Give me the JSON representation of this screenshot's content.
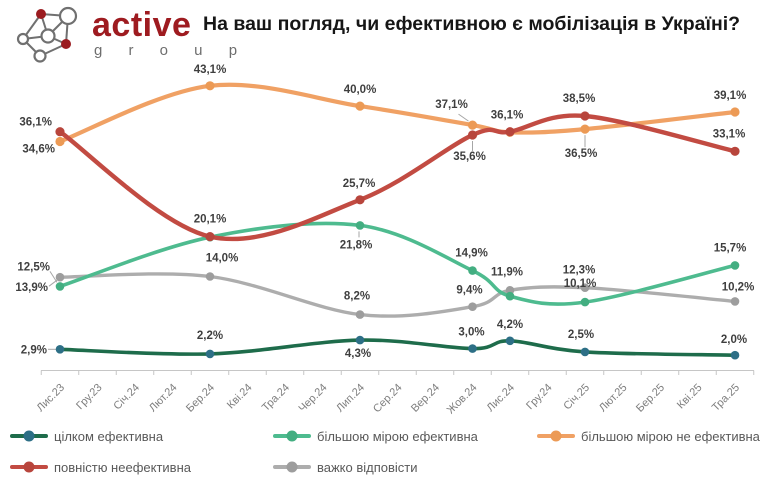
{
  "header": {
    "brand": "active",
    "brand_sub": "g r o u p",
    "title": "На ваш погляд, чи ефективною є мобілізація в Україні?"
  },
  "brand_colors": {
    "maroon": "#9E1B20",
    "gray": "#6E6E6E"
  },
  "chart_data": {
    "type": "line",
    "title": "На ваш погляд, чи ефективною є мобілізація в Україні?",
    "grid": false,
    "legend_position": "bottom",
    "ylim": [
      0,
      47
    ],
    "x_labels": [
      "Лис.23",
      "Гру.23",
      "Січ.24",
      "Лют.24",
      "Бер.24",
      "Кві.24",
      "Тра.24",
      "Чер.24",
      "Лип.24",
      "Сер.24",
      "Вер.24",
      "Жов.24",
      "Лис.24",
      "Гру.24",
      "Січ.25",
      "Лют.25",
      "Бер.25",
      "Кві.25",
      "Тра.25"
    ],
    "wave_months": [
      "Лис.23",
      "Бер.24",
      "Лип.24",
      "Жов.24",
      "Лис.24",
      "Січ.25",
      "Тра.25"
    ],
    "wave_indices": [
      0,
      4,
      8,
      11,
      12,
      14,
      18
    ],
    "series": [
      {
        "name": "важко відповісти",
        "color": "#ADADAD",
        "dot": "#9D9D9D",
        "width": 3.4,
        "r": 4.3,
        "values": [
          13.9,
          14.0,
          8.2,
          9.4,
          11.9,
          12.3,
          10.2
        ],
        "labels": [
          {
            "t": "13,9%",
            "dx": -12,
            "dy": 14,
            "a": "end",
            "lead": [
              -3,
              3,
              -11,
              9
            ]
          },
          {
            "t": "14,0%",
            "dx": 12,
            "dy": -15,
            "a": "middle"
          },
          {
            "t": "8,2%",
            "dx": -3,
            "dy": -15,
            "a": "middle"
          },
          {
            "t": "9,4%",
            "dx": -3,
            "dy": -13,
            "a": "middle"
          },
          {
            "t": "11,9%",
            "dx": -3,
            "dy": -15,
            "a": "middle"
          },
          {
            "t": "12,3%",
            "dx": -6,
            "dy": -14,
            "a": "middle"
          },
          {
            "t": "10,2%",
            "dx": 3,
            "dy": -11,
            "a": "middle"
          }
        ]
      },
      {
        "name": "більшою мірою ефективна",
        "color": "#4EBB8F",
        "dot": "#43AE81",
        "width": 3.6,
        "r": 4.3,
        "values": [
          12.5,
          20.0,
          21.8,
          14.9,
          11.0,
          10.1,
          15.7
        ],
        "labels": [
          {
            "t": "12,5%",
            "dx": -10,
            "dy": -16,
            "a": "end",
            "lead": [
              -3,
              -4,
              -10,
              -15
            ]
          },
          null,
          {
            "t": "21,8%",
            "dx": -4,
            "dy": 23,
            "a": "middle",
            "lead": [
              -1,
              6,
              -1,
              12
            ]
          },
          {
            "t": "14,9%",
            "dx": -1,
            "dy": -14,
            "a": "middle"
          },
          null,
          {
            "t": "10,1%",
            "dx": -5,
            "dy": -15,
            "a": "middle"
          },
          {
            "t": "15,7%",
            "dx": -5,
            "dy": -14,
            "a": "middle"
          }
        ]
      },
      {
        "name": "більшою мірою не ефективна",
        "color": "#F0A164",
        "dot": "#EC9A55",
        "width": 4.2,
        "r": 4.6,
        "values": [
          34.6,
          43.1,
          40.0,
          37.1,
          36.0,
          36.5,
          39.1
        ],
        "labels": [
          {
            "t": "34,6%",
            "dx": -5,
            "dy": 11,
            "a": "end"
          },
          {
            "t": "43,1%",
            "dx": 0,
            "dy": -13,
            "a": "middle"
          },
          {
            "t": "40,0%",
            "dx": 0,
            "dy": -13,
            "a": "middle"
          },
          {
            "t": "37,1%",
            "dx": -21,
            "dy": -17,
            "a": "middle",
            "lead": [
              -4,
              -4,
              -14,
              -11
            ]
          },
          null,
          {
            "t": "36,5%",
            "dx": -4,
            "dy": 28,
            "a": "middle",
            "lead": [
              0,
              6,
              0,
              18
            ]
          },
          {
            "t": "39,1%",
            "dx": -5,
            "dy": -13,
            "a": "middle"
          }
        ]
      },
      {
        "name": "повністю неефективна",
        "color": "#C24B42",
        "dot": "#B8453C",
        "width": 4.4,
        "r": 4.6,
        "values": [
          36.1,
          20.1,
          25.7,
          35.6,
          36.1,
          38.5,
          33.1
        ],
        "labels": [
          {
            "t": "36,1%",
            "dx": -8,
            "dy": -6,
            "a": "end"
          },
          {
            "t": "20,1%",
            "dx": 0,
            "dy": -14,
            "a": "middle"
          },
          {
            "t": "25,7%",
            "dx": -1,
            "dy": -13,
            "a": "middle"
          },
          {
            "t": "35,6%",
            "dx": -3,
            "dy": 25,
            "a": "middle",
            "lead": [
              0,
              6,
              0,
              16
            ]
          },
          {
            "t": "36,1%",
            "dx": -3,
            "dy": -13,
            "a": "middle"
          },
          {
            "t": "38,5%",
            "dx": -6,
            "dy": -14,
            "a": "middle"
          },
          {
            "t": "33,1%",
            "dx": -6,
            "dy": -14,
            "a": "middle"
          }
        ]
      },
      {
        "name": "цілком ефективна",
        "color": "#1E6C4B",
        "dot": "#2D6F86",
        "width": 3.6,
        "r": 4.3,
        "values": [
          2.9,
          2.2,
          4.3,
          3.0,
          4.2,
          2.5,
          2.0
        ],
        "labels": [
          {
            "t": "2,9%",
            "dx": -13,
            "dy": 4,
            "a": "end",
            "lead": [
              -3,
              0,
              -12,
              0
            ]
          },
          {
            "t": "2,2%",
            "dx": 0,
            "dy": -15,
            "a": "middle"
          },
          {
            "t": "4,3%",
            "dx": -2,
            "dy": 17,
            "a": "middle"
          },
          {
            "t": "3,0%",
            "dx": -1,
            "dy": -13,
            "a": "middle"
          },
          {
            "t": "4,2%",
            "dx": 0,
            "dy": -13,
            "a": "middle"
          },
          {
            "t": "2,5%",
            "dx": -4,
            "dy": -14,
            "a": "middle"
          },
          {
            "t": "2,0%",
            "dx": -1,
            "dy": -12,
            "a": "middle"
          }
        ]
      }
    ],
    "legend": [
      {
        "label": "цілком ефективна",
        "color": "#1E6C4B",
        "dot": "#2D6F86"
      },
      {
        "label": "більшою мірою ефективна",
        "color": "#4EBB8F",
        "dot": "#43AE81"
      },
      {
        "label": "більшою мірою не ефективна",
        "color": "#F0A164",
        "dot": "#EC9A55"
      },
      {
        "label": "повністю неефективна",
        "color": "#C24B42",
        "dot": "#B8453C"
      },
      {
        "label": "важко відповісти",
        "color": "#ADADAD",
        "dot": "#9D9D9D"
      }
    ]
  }
}
